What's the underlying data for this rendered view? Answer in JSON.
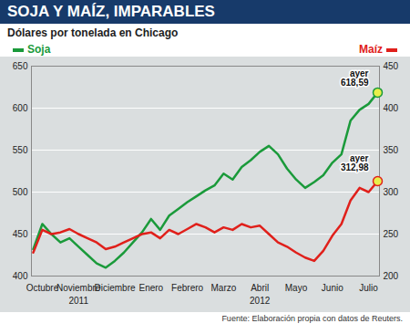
{
  "chart_data": {
    "type": "line",
    "title": "SOJA Y MAÍZ, IMPARABLES",
    "subtitle": "Dólares por tonelada en Chicago",
    "source": "Fuente: Elaboración propia con datos de Reuters.",
    "categories": [
      null,
      "Octubre",
      null,
      null,
      null,
      "Noviembre",
      null,
      null,
      null,
      "Diciembre",
      null,
      null,
      null,
      "Enero",
      null,
      null,
      null,
      "Febrero",
      null,
      null,
      null,
      "Marzo",
      null,
      null,
      null,
      "Abril",
      null,
      null,
      null,
      "Mayo",
      null,
      null,
      null,
      "Junio",
      null,
      null,
      null,
      "Julio",
      null
    ],
    "years": [
      {
        "label": "2011",
        "months": [
          "Octubre",
          "Noviembre",
          "Diciembre"
        ]
      },
      {
        "label": "2012",
        "months": [
          "Enero",
          "Febrero",
          "Marzo",
          "Abril",
          "Mayo",
          "Junio",
          "Julio"
        ]
      }
    ],
    "series": [
      {
        "name": "Soja",
        "color": "#1a9a3a",
        "values": [
          432,
          462,
          450,
          440,
          445,
          435,
          425,
          415,
          410,
          418,
          428,
          440,
          452,
          468,
          455,
          472,
          480,
          488,
          495,
          502,
          508,
          522,
          515,
          530,
          538,
          548,
          555,
          545,
          528,
          515,
          505,
          512,
          520,
          535,
          545,
          585,
          598,
          605,
          618.59
        ]
      },
      {
        "name": "Maíz",
        "color": "#e0201b",
        "axis": "y2",
        "values": [
          228,
          255,
          250,
          252,
          256,
          250,
          245,
          240,
          232,
          235,
          240,
          245,
          250,
          252,
          245,
          255,
          250,
          256,
          262,
          258,
          252,
          258,
          255,
          262,
          258,
          260,
          250,
          240,
          235,
          228,
          222,
          218,
          230,
          248,
          262,
          290,
          305,
          300,
          312.98
        ]
      }
    ],
    "ylim": [
      400,
      650
    ],
    "yticks": [
      400,
      450,
      500,
      550,
      600,
      650
    ],
    "y2lim": [
      200,
      450
    ],
    "y2ticks": [
      200,
      250,
      300,
      350,
      400,
      450
    ],
    "grid": true,
    "annotations": [
      {
        "series": "Soja",
        "text": "ayer",
        "value": 618.59,
        "value_label": "618,59"
      },
      {
        "series": "Maíz",
        "text": "ayer",
        "value": 312.98,
        "value_label": "312,98"
      }
    ]
  }
}
